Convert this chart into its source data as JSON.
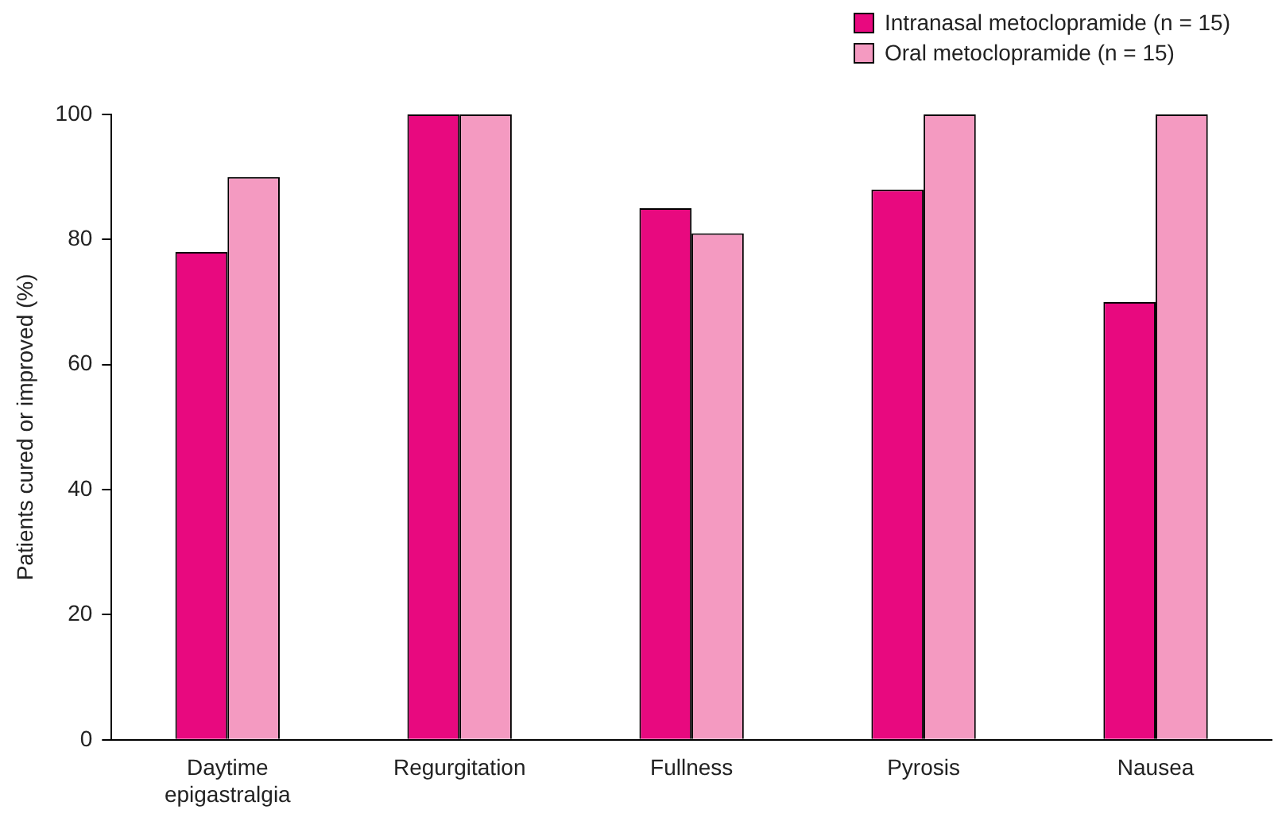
{
  "chart_data": {
    "type": "bar",
    "ylabel": "Patients cured or improved (%)",
    "categories": [
      "Daytime epigastralgia",
      "Regurgitation",
      "Fullness",
      "Pyrosis",
      "Nausea"
    ],
    "series": [
      {
        "name": "Intranasal metoclopramide (n = 15)",
        "color": "#e8097f",
        "values": [
          78,
          100,
          85,
          88,
          70
        ]
      },
      {
        "name": "Oral metoclopramide (n = 15)",
        "color": "#f49ac1",
        "values": [
          90,
          100,
          81,
          100,
          100
        ]
      }
    ],
    "ylim": [
      0,
      100
    ],
    "yticks": [
      0,
      20,
      40,
      60,
      80,
      100
    ],
    "grid": false,
    "legend": "top right"
  }
}
